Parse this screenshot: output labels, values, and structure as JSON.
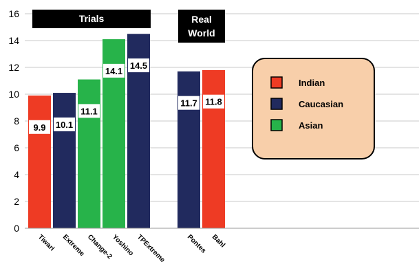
{
  "chart_data": {
    "type": "bar",
    "categories": [
      "Tiwari",
      "Extreme",
      "Change-2",
      "Yoshino",
      "TPExtreme",
      "Pontes",
      "Bahl"
    ],
    "values": [
      9.9,
      10.1,
      11.1,
      14.1,
      14.5,
      11.7,
      11.8
    ],
    "data_labels": [
      "9.9",
      "10.1",
      "11.1",
      "14.1",
      "14.5",
      "11.7",
      "11.8"
    ],
    "series_of_bar": [
      "Indian",
      "Caucasian",
      "Asian",
      "Asian",
      "Caucasian",
      "Caucasian",
      "Indian"
    ],
    "legend": [
      {
        "name": "Indian",
        "color": "#ee3b24"
      },
      {
        "name": "Caucasian",
        "color": "#212a5e"
      },
      {
        "name": "Asian",
        "color": "#27b34a"
      }
    ],
    "groups": [
      {
        "label": "Trials"
      },
      {
        "label_lines": [
          "Real",
          "World"
        ]
      }
    ],
    "yticks": [
      "0",
      "2",
      "4",
      "6",
      "8",
      "10",
      "12",
      "14",
      "16"
    ],
    "ylim": [
      0,
      16
    ],
    "grid": "horizontal",
    "legend_position": "right",
    "title": "",
    "xlabel": "",
    "ylabel": ""
  }
}
